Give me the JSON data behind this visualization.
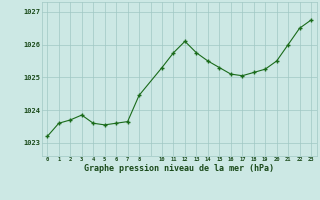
{
  "x": [
    0,
    1,
    2,
    3,
    4,
    5,
    6,
    7,
    8,
    10,
    11,
    12,
    13,
    14,
    15,
    16,
    17,
    18,
    19,
    20,
    21,
    22,
    23
  ],
  "y": [
    1023.2,
    1023.6,
    1023.7,
    1023.85,
    1023.6,
    1023.55,
    1023.6,
    1023.65,
    1024.45,
    1025.3,
    1025.75,
    1026.1,
    1025.75,
    1025.5,
    1025.3,
    1025.1,
    1025.05,
    1025.15,
    1025.25,
    1025.5,
    1026.0,
    1026.5,
    1026.75
  ],
  "line_color": "#1a6b1a",
  "marker_color": "#1a6b1a",
  "bg_color": "#cce8e4",
  "grid_color": "#a0c8c4",
  "ylabel_ticks": [
    1023,
    1024,
    1025,
    1026,
    1027
  ],
  "xlabel": "Graphe pression niveau de la mer (hPa)",
  "xlabel_color": "#1a4a1a",
  "xlim": [
    -0.5,
    23.5
  ],
  "ylim": [
    1022.6,
    1027.3
  ],
  "xtick_labels_all": [
    "0",
    "1",
    "2",
    "3",
    "4",
    "5",
    "6",
    "7",
    "8",
    "",
    "10",
    "11",
    "12",
    "13",
    "14",
    "15",
    "16",
    "17",
    "18",
    "19",
    "20",
    "21",
    "22",
    "23"
  ],
  "tick_color": "#1a4a1a"
}
